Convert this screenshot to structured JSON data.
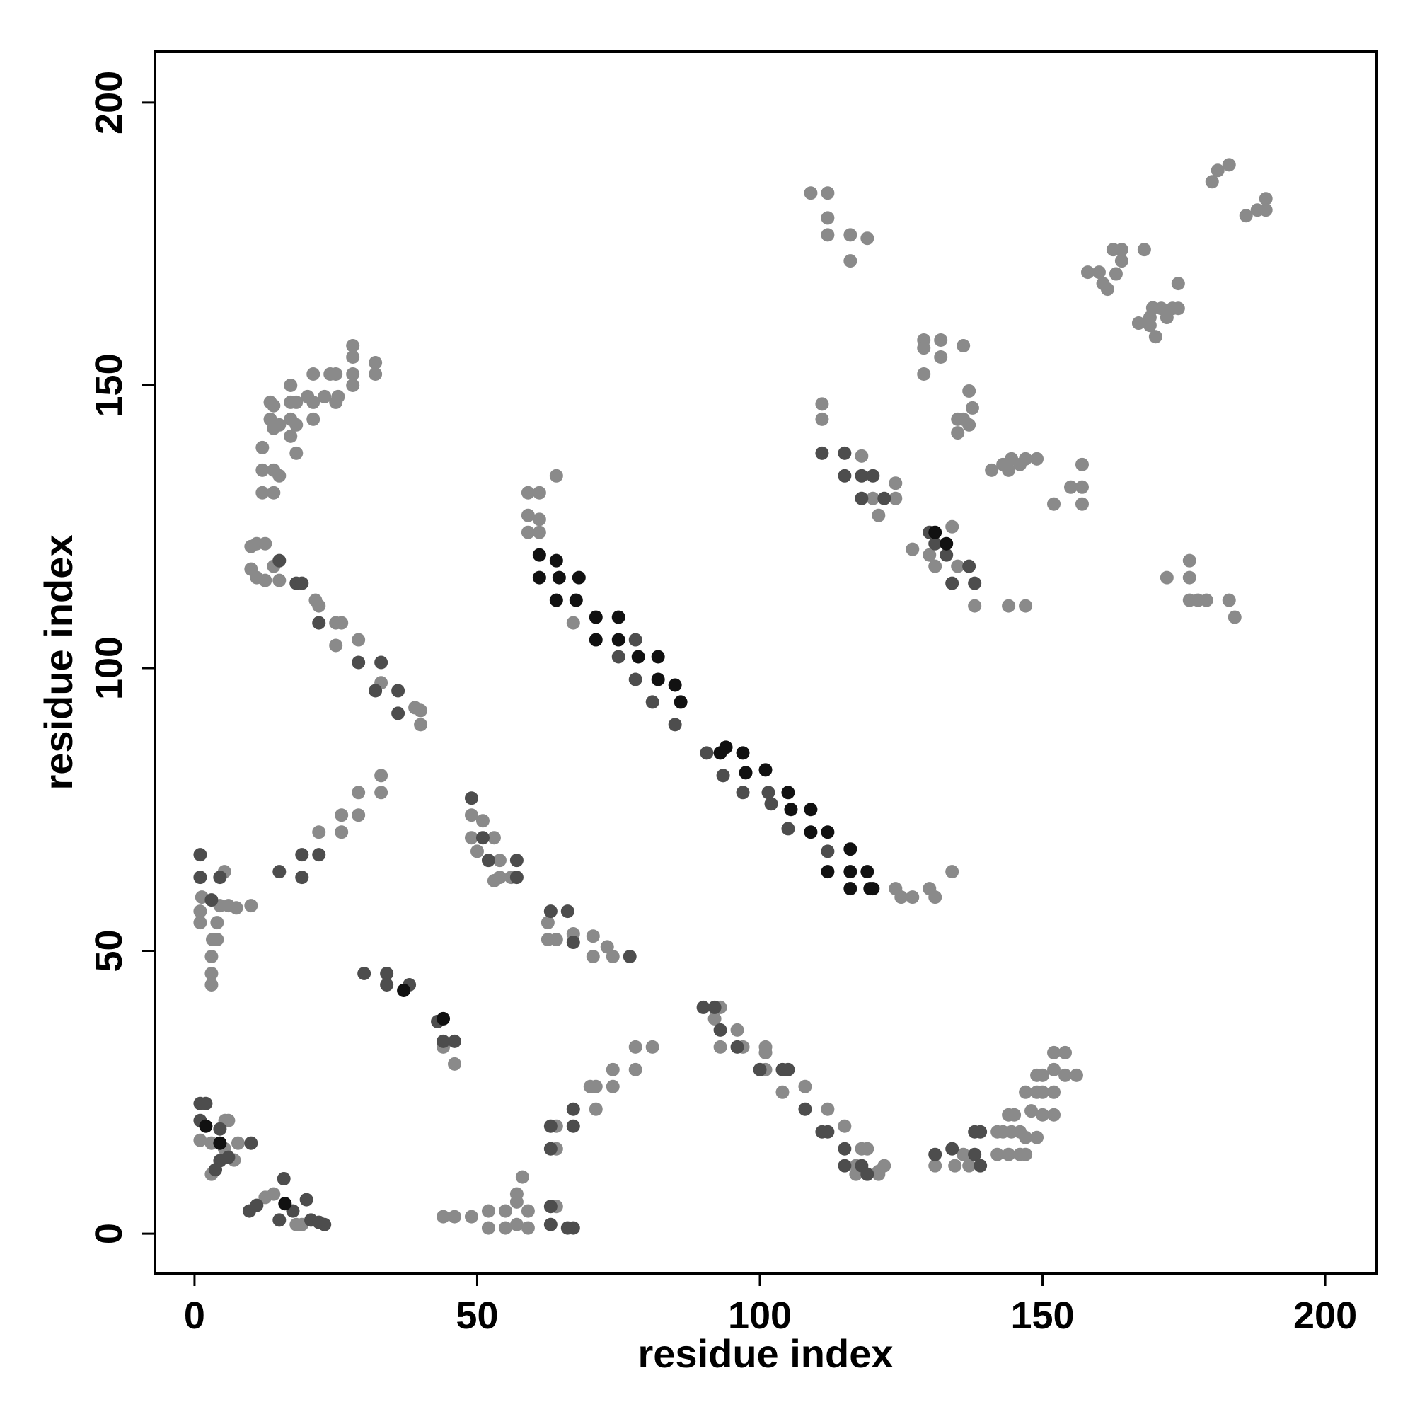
{
  "chart_data": {
    "type": "scatter",
    "xlabel": "residue index",
    "ylabel": "residue index",
    "xlim": [
      -7,
      209
    ],
    "ylim": [
      -7,
      209
    ],
    "xticks": [
      0,
      50,
      100,
      150,
      200
    ],
    "yticks": [
      0,
      50,
      100,
      150,
      200
    ],
    "grid": false,
    "series": [
      {
        "color": "#8a8a8a",
        "x": [
          1,
          3,
          6,
          5.4,
          5.3,
          3,
          7.7,
          7,
          12.5,
          14,
          18,
          19,
          1.3,
          1,
          4.5,
          6,
          7.4,
          10,
          1,
          3.2,
          4,
          3,
          3,
          3,
          4,
          5.3,
          22,
          26,
          26,
          29,
          29,
          33,
          33,
          44,
          46,
          10,
          11,
          12.5,
          10,
          11,
          12.5,
          14,
          15,
          21.4,
          22,
          25,
          26,
          25,
          29,
          33,
          39,
          40,
          40,
          12,
          14,
          12,
          14,
          15,
          12,
          13.4,
          14,
          13.4,
          15,
          14,
          17,
          17,
          17,
          17,
          18,
          18,
          18,
          20,
          21,
          21,
          21,
          23,
          24,
          25,
          25.4,
          25,
          28,
          28,
          28,
          28,
          32,
          32,
          59,
          61,
          59,
          61,
          59,
          61,
          64,
          67,
          124,
          125,
          127,
          130,
          131,
          134,
          49,
          49,
          51,
          53,
          50,
          54,
          53,
          54,
          56,
          62.5,
          62.5,
          64,
          67,
          70.5,
          70.5,
          73,
          74,
          44,
          46,
          49,
          52,
          52,
          55,
          55,
          57,
          57,
          58,
          57,
          59,
          59,
          64,
          64,
          64,
          71,
          70,
          71,
          74,
          74,
          78,
          78,
          81,
          93,
          92,
          96,
          93,
          97,
          101,
          101,
          101,
          104,
          108,
          112,
          115,
          118,
          119,
          117,
          117,
          121,
          122,
          121,
          131,
          134.5,
          136,
          137,
          142,
          143,
          144.5,
          146,
          142,
          144,
          146,
          147,
          144,
          145,
          148,
          147,
          149,
          147,
          149,
          150,
          152,
          149,
          150,
          152,
          154,
          156,
          152,
          152,
          154,
          150,
          118,
          124,
          124,
          120,
          121,
          127,
          130,
          131,
          138,
          134,
          135,
          111,
          111,
          129,
          129,
          129,
          132,
          132,
          136,
          135,
          136,
          137,
          137.6,
          137,
          135,
          141,
          143,
          144.5,
          147,
          149,
          144,
          146,
          144,
          147,
          152,
          155,
          157,
          157,
          157,
          172,
          176,
          176,
          176,
          179,
          183,
          184,
          177.5,
          109,
          112,
          112,
          112,
          116,
          119,
          116,
          158,
          160,
          160.7,
          161.5,
          163,
          164,
          164,
          162.5,
          168,
          167,
          169,
          169.5,
          171,
          173,
          170,
          169,
          172,
          174,
          174,
          180,
          181,
          183,
          186,
          188,
          189.5,
          189.5
        ],
        "values": [
          16.5,
          16,
          20,
          20,
          15,
          10.5,
          16,
          13,
          6.4,
          7,
          1.6,
          1.6,
          59.5,
          57,
          58,
          58,
          57.6,
          58,
          55,
          52,
          52,
          49,
          46,
          44,
          55,
          64,
          71,
          71,
          74,
          74,
          78,
          81,
          78,
          33,
          30,
          121.5,
          122,
          122,
          117.5,
          116,
          115.5,
          118,
          115.5,
          112,
          111,
          108,
          108,
          104,
          105,
          97.4,
          93,
          90,
          92.5,
          131,
          131,
          135,
          135,
          134,
          139,
          147,
          146.4,
          144,
          143,
          142.4,
          150,
          147,
          144,
          141,
          138,
          147,
          143,
          148,
          152,
          147,
          144,
          148,
          152,
          152,
          148,
          147,
          152,
          157,
          155,
          150,
          154,
          152,
          131,
          131,
          127,
          126.3,
          124,
          124,
          134,
          108,
          61,
          59.5,
          59.5,
          61,
          59.5,
          64,
          74,
          70,
          73,
          70,
          67.6,
          66,
          62.4,
          63,
          63,
          55,
          52,
          52,
          53,
          52.6,
          49,
          50.7,
          49,
          3,
          3,
          3,
          4,
          1,
          4,
          1,
          5.6,
          1.6,
          10,
          7,
          4,
          1,
          4.8,
          15,
          19,
          22,
          26,
          26,
          26,
          29,
          29,
          33,
          33,
          40,
          38,
          36,
          33,
          33,
          33,
          32,
          29,
          25,
          26,
          22,
          19,
          15,
          15,
          12,
          10.5,
          11,
          12,
          10.5,
          12,
          12,
          14,
          12,
          18,
          18,
          18,
          18,
          14,
          14,
          14,
          14,
          21,
          21,
          21.7,
          17,
          17,
          25,
          25,
          25,
          25,
          28,
          28,
          29,
          28,
          28,
          21,
          32,
          32,
          21,
          137.5,
          132.7,
          130,
          130,
          127,
          121,
          120,
          118,
          111,
          125,
          118,
          146.7,
          144,
          152,
          158,
          156.6,
          158,
          155,
          157,
          141.6,
          144,
          149,
          146,
          143,
          144,
          135,
          136,
          137,
          137,
          137,
          135,
          136,
          111,
          111,
          129,
          132,
          136,
          132,
          129,
          116,
          119,
          116,
          112,
          112,
          112,
          109,
          112,
          184,
          184,
          179.6,
          176.6,
          176.6,
          176,
          172,
          170,
          170,
          168,
          167,
          169.7,
          172,
          174,
          174,
          174,
          161,
          162,
          163.7,
          163.6,
          163.6,
          158.6,
          160.6,
          162,
          163.6,
          168,
          186,
          188,
          189,
          180,
          181,
          183,
          181
        ]
      },
      {
        "color": "#4d4d4d",
        "x": [
          75,
          78,
          78,
          81,
          85,
          90.6,
          93.5,
          97,
          101.5,
          102,
          105,
          112,
          1,
          2,
          1,
          4.5,
          6,
          4.5,
          3.7,
          10,
          9.7,
          11,
          15.8,
          15,
          17.4,
          19.8,
          20.6,
          22,
          23,
          1,
          1,
          4.5,
          3,
          15,
          19,
          19,
          22,
          30,
          34,
          34,
          38,
          43,
          44,
          46,
          15,
          18,
          19,
          22,
          29,
          32,
          36,
          33,
          36,
          49,
          51,
          52,
          57,
          57,
          63,
          66,
          67,
          77,
          63,
          63,
          66,
          67,
          63,
          63,
          67,
          67,
          90,
          92,
          93,
          96,
          100,
          104,
          105,
          108,
          111,
          112,
          115,
          115,
          118,
          119,
          111,
          115,
          115,
          118,
          120,
          122,
          118,
          130,
          131,
          133,
          134,
          137,
          138,
          138,
          139,
          138,
          139,
          134,
          131
        ],
        "values": [
          102,
          105,
          98,
          94,
          90,
          85,
          81,
          78,
          78,
          76,
          71.6,
          67.6,
          23,
          23,
          20,
          18.5,
          13.5,
          12.9,
          11.3,
          16,
          4,
          5,
          9.7,
          2.4,
          4,
          6,
          2.4,
          2,
          1.6,
          67,
          63,
          63,
          59,
          64,
          67,
          63,
          67,
          46,
          46,
          44,
          44,
          37.5,
          34,
          34,
          119,
          115,
          115,
          108,
          101,
          96,
          92,
          101,
          96,
          77,
          70,
          66,
          66,
          63,
          57,
          57,
          51.5,
          49,
          4.8,
          1.6,
          1,
          1,
          19,
          15,
          22,
          19,
          40,
          40,
          36,
          33,
          29,
          29,
          29,
          22,
          18,
          18,
          15,
          12,
          12,
          10.5,
          138,
          138,
          134,
          134,
          134,
          130,
          130,
          124,
          122,
          120,
          115,
          118,
          115,
          14,
          12,
          18,
          18,
          15,
          14
        ]
      },
      {
        "color": "#111111",
        "x": [
          61,
          61,
          64,
          64.5,
          64,
          68,
          67.5,
          71,
          71,
          75,
          75,
          78.5,
          82,
          82,
          86,
          85,
          93,
          94,
          97,
          97.5,
          101,
          105,
          105.5,
          109,
          109,
          112,
          112,
          116,
          116,
          116,
          119,
          119.5,
          120,
          2,
          4.5,
          16,
          37,
          44,
          133,
          131
        ],
        "values": [
          120,
          116,
          119,
          116,
          112,
          116,
          112,
          109,
          105,
          109,
          105,
          102,
          102,
          98,
          94,
          97,
          85,
          86,
          85,
          81.5,
          82,
          78,
          75,
          75,
          71,
          71,
          64,
          68,
          64,
          61,
          64,
          61,
          61,
          19,
          16,
          5.3,
          43,
          38,
          122,
          124
        ]
      }
    ]
  }
}
